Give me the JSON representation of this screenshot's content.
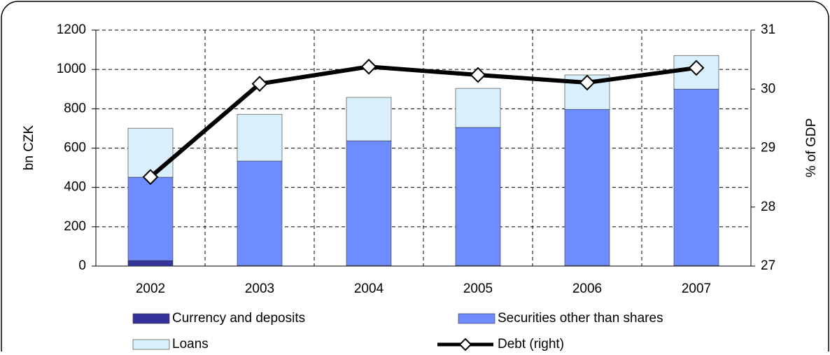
{
  "chart_data": {
    "type": "bar-line",
    "categories": [
      "2002",
      "2003",
      "2004",
      "2005",
      "2006",
      "2007"
    ],
    "ylabel": "bn CZK",
    "y2label": "% of GDP",
    "ylim": [
      0,
      1200
    ],
    "yticks": [
      0,
      200,
      400,
      600,
      800,
      1000,
      1200
    ],
    "y2lim": [
      27,
      31
    ],
    "y2ticks": [
      27,
      28,
      29,
      30,
      31
    ],
    "grid": true,
    "series": [
      {
        "name": "Currency and deposits",
        "color": "#333399",
        "values": [
          28,
          3,
          3,
          3,
          3,
          3
        ]
      },
      {
        "name": "Securities other than shares",
        "color": "#6f8cff",
        "values": [
          424,
          531,
          634,
          702,
          794,
          897
        ]
      },
      {
        "name": "Loans",
        "color": "#d9f0fc",
        "values": [
          249,
          238,
          221,
          199,
          175,
          171
        ]
      },
      {
        "name": "Debt (right)",
        "color": "#000000",
        "axis": "y2",
        "values": [
          28.51,
          30.09,
          30.38,
          30.24,
          30.11,
          30.36
        ]
      }
    ]
  }
}
